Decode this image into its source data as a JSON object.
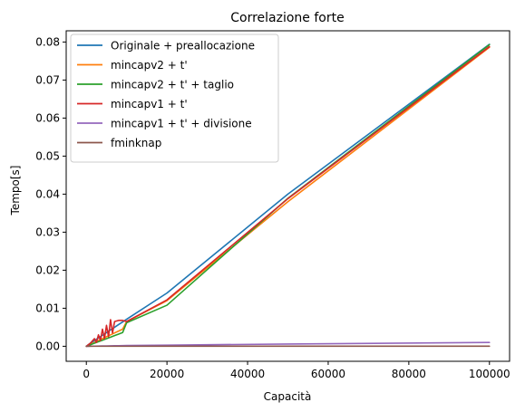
{
  "chart_data": {
    "type": "line",
    "title": "Correlazione forte",
    "xlabel": "Capacità",
    "ylabel": "Tempo[s]",
    "xlim": [
      -5000,
      105000
    ],
    "ylim": [
      -0.00395,
      0.08295
    ],
    "grid": false,
    "legend_position": "upper-left",
    "x_ticks": [
      0,
      20000,
      40000,
      60000,
      80000,
      100000
    ],
    "x_tick_labels": [
      "0",
      "20000",
      "40000",
      "60000",
      "80000",
      "100000"
    ],
    "y_ticks": [
      0,
      0.01,
      0.02,
      0.03,
      0.04,
      0.05,
      0.06,
      0.07,
      0.08
    ],
    "y_tick_labels": [
      "0.00",
      "0.01",
      "0.02",
      "0.03",
      "0.04",
      "0.05",
      "0.06",
      "0.07",
      "0.08"
    ],
    "series": [
      {
        "name": "Originale + preallocazione",
        "color": "#1f77b4",
        "x": [
          0,
          1000,
          2000,
          3000,
          4000,
          5000,
          6000,
          7000,
          8000,
          9000,
          10000,
          20000,
          50000,
          100000
        ],
        "y": [
          0,
          0.0008,
          0.0015,
          0.0022,
          0.0029,
          0.0036,
          0.0043,
          0.005,
          0.0057,
          0.0064,
          0.0071,
          0.014,
          0.04,
          0.0794
        ]
      },
      {
        "name": "mincapv2 + t'",
        "color": "#ff7f0e",
        "x": [
          0,
          1000,
          2000,
          3000,
          4000,
          5000,
          6000,
          7000,
          8000,
          9000,
          10000,
          20000,
          50000,
          100000
        ],
        "y": [
          0,
          0.0005,
          0.001,
          0.0015,
          0.002,
          0.0025,
          0.003,
          0.0035,
          0.004,
          0.0045,
          0.0065,
          0.012,
          0.038,
          0.0786
        ]
      },
      {
        "name": "mincapv2 + t' + taglio",
        "color": "#2ca02c",
        "x": [
          0,
          1000,
          2000,
          3000,
          4000,
          5000,
          6000,
          7000,
          8000,
          9000,
          10000,
          20000,
          50000,
          100000
        ],
        "y": [
          0,
          0.0004,
          0.0008,
          0.0012,
          0.0016,
          0.002,
          0.0024,
          0.0028,
          0.0032,
          0.0036,
          0.0062,
          0.0108,
          0.0389,
          0.0793
        ]
      },
      {
        "name": "mincapv1 + t'",
        "color": "#d62728",
        "x": [
          0,
          1000,
          2000,
          2500,
          3000,
          3500,
          4000,
          4500,
          5000,
          5500,
          6000,
          6500,
          7000,
          8000,
          9000,
          10000,
          20000,
          50000,
          100000
        ],
        "y": [
          0,
          0.0008,
          0.002,
          0.001,
          0.003,
          0.0015,
          0.0045,
          0.002,
          0.0055,
          0.0025,
          0.007,
          0.0035,
          0.0065,
          0.0068,
          0.0068,
          0.0065,
          0.0122,
          0.0388,
          0.0788
        ]
      },
      {
        "name": "mincapv1 + t' + divisione",
        "color": "#9467bd",
        "x": [
          0,
          1000,
          2000,
          3000,
          4000,
          5000,
          6000,
          7000,
          8000,
          9000,
          10000,
          20000,
          50000,
          100000
        ],
        "y": [
          0,
          2e-05,
          4e-05,
          6e-05,
          8e-05,
          0.0001,
          0.00012,
          0.00014,
          0.00016,
          0.00018,
          0.0002,
          0.0003,
          0.0006,
          0.001
        ]
      },
      {
        "name": "fminknap",
        "color": "#8c564b",
        "x": [
          0,
          1000,
          2000,
          3000,
          4000,
          5000,
          6000,
          7000,
          8000,
          9000,
          10000,
          20000,
          50000,
          100000
        ],
        "y": [
          0,
          1e-05,
          1e-05,
          1e-05,
          1e-05,
          1e-05,
          1e-05,
          1e-05,
          1e-05,
          1e-05,
          1e-05,
          2e-05,
          2e-05,
          2e-05
        ]
      }
    ]
  }
}
